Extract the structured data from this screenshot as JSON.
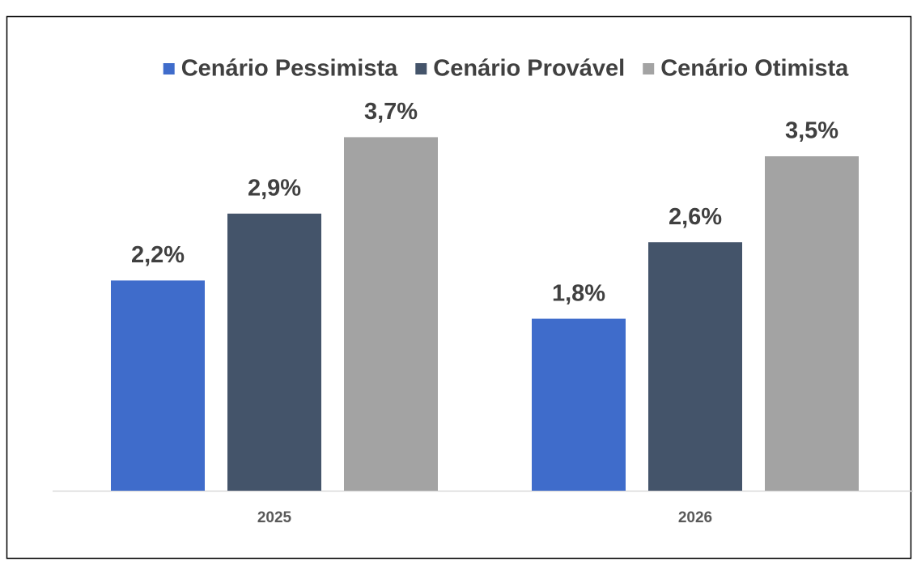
{
  "chart_data": {
    "type": "bar",
    "categories": [
      "2025",
      "2026"
    ],
    "series": [
      {
        "name": "Cenário Pessimista",
        "color": "#3f6ccb",
        "values": [
          2.2,
          1.8
        ],
        "value_labels": [
          "2,2%",
          "1,8%"
        ]
      },
      {
        "name": "Cenário Provável",
        "color": "#44546a",
        "values": [
          2.9,
          2.6
        ],
        "value_labels": [
          "2,9%",
          "2,6%"
        ]
      },
      {
        "name": "Cenário Otimista",
        "color": "#a3a3a3",
        "values": [
          3.7,
          3.5
        ],
        "value_labels": [
          "3,7%",
          "3,5%"
        ]
      }
    ],
    "ylim": [
      0,
      4
    ],
    "legend": "top"
  }
}
